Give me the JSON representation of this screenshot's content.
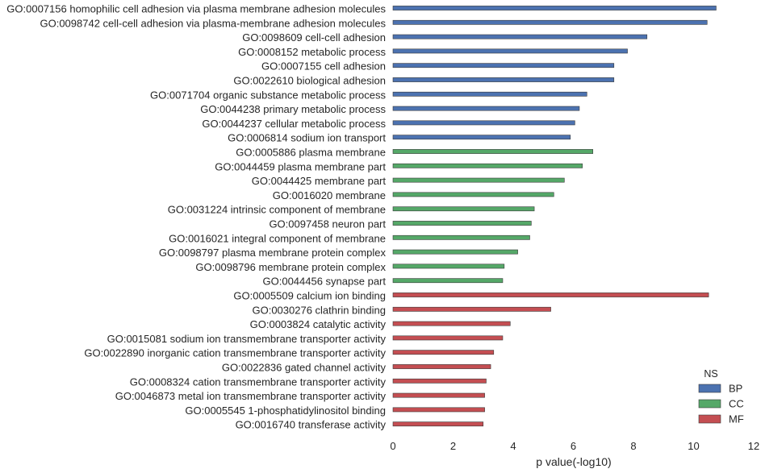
{
  "colors": {
    "BP": "#4c72b0",
    "CC": "#55a868",
    "MF": "#c44e52",
    "edge": "#3a3a3a"
  },
  "chart_data": {
    "type": "bar",
    "orientation": "horizontal",
    "xlabel": "p value(-log10)",
    "ylabel": "",
    "title": "",
    "xlim": [
      0,
      12
    ],
    "xticks": [
      0,
      2,
      4,
      6,
      8,
      10,
      12
    ],
    "grid": false,
    "legend": {
      "title": "NS",
      "placement": "bottom-right",
      "entries": [
        "BP",
        "CC",
        "MF"
      ]
    },
    "categories": [
      "GO:0007156 homophilic cell adhesion via plasma membrane adhesion molecules",
      "GO:0098742 cell-cell adhesion via plasma-membrane adhesion molecules",
      "GO:0098609 cell-cell adhesion",
      "GO:0008152 metabolic process",
      "GO:0007155 cell adhesion",
      "GO:0022610 biological adhesion",
      "GO:0071704 organic substance metabolic process",
      "GO:0044238 primary metabolic process",
      "GO:0044237 cellular metabolic process",
      "GO:0006814 sodium ion transport",
      "GO:0005886 plasma membrane",
      "GO:0044459 plasma membrane part",
      "GO:0044425 membrane part",
      "GO:0016020 membrane",
      "GO:0031224 intrinsic component of membrane",
      "GO:0097458 neuron part",
      "GO:0016021 integral component of membrane",
      "GO:0098797 plasma membrane protein complex",
      "GO:0098796 membrane protein complex",
      "GO:0044456 synapse part",
      "GO:0005509 calcium ion binding",
      "GO:0030276 clathrin binding",
      "GO:0003824 catalytic activity",
      "GO:0015081 sodium ion transmembrane transporter activity",
      "GO:0022890 inorganic cation transmembrane transporter activity",
      "GO:0022836 gated channel activity",
      "GO:0008324 cation transmembrane transporter activity",
      "GO:0046873 metal ion transmembrane transporter activity",
      "GO:0005545 1-phosphatidylinositol binding",
      "GO:0016740 transferase activity"
    ],
    "series": [
      {
        "name": "BP",
        "values": [
          10.75,
          10.45,
          8.45,
          7.8,
          7.35,
          7.35,
          6.45,
          6.2,
          6.05,
          5.9,
          null,
          null,
          null,
          null,
          null,
          null,
          null,
          null,
          null,
          null,
          null,
          null,
          null,
          null,
          null,
          null,
          null,
          null,
          null,
          null
        ]
      },
      {
        "name": "CC",
        "values": [
          null,
          null,
          null,
          null,
          null,
          null,
          null,
          null,
          null,
          null,
          6.65,
          6.3,
          5.7,
          5.35,
          4.7,
          4.6,
          4.55,
          4.15,
          3.7,
          3.65,
          null,
          null,
          null,
          null,
          null,
          null,
          null,
          null,
          null,
          null
        ]
      },
      {
        "name": "MF",
        "values": [
          null,
          null,
          null,
          null,
          null,
          null,
          null,
          null,
          null,
          null,
          null,
          null,
          null,
          null,
          null,
          null,
          null,
          null,
          null,
          null,
          10.5,
          5.25,
          3.9,
          3.65,
          3.35,
          3.25,
          3.1,
          3.05,
          3.05,
          3.0
        ]
      }
    ]
  }
}
